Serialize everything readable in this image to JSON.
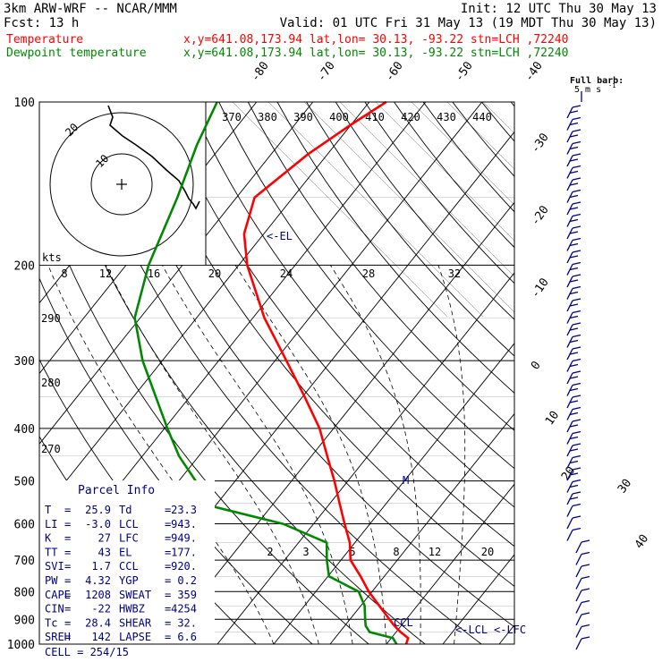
{
  "header": {
    "line1_left": "3km ARW-WRF -- NCAR/MMM",
    "line1_right": "Init: 12 UTC Thu 30 May 13",
    "line2_left": "Fcst:    13 h",
    "line2_right": "Valid: 01 UTC Fri 31 May 13 (19 MDT Thu 30 May 13)",
    "temp_label": "Temperature",
    "temp_info": "x,y=641.08,173.94   lat,lon= 30.13, -93.22  stn=LCH ,72240",
    "dew_label": "Dewpoint temperature",
    "dew_info": "x,y=641.08,173.94   lat,lon= 30.13, -93.22  stn=LCH ,72240"
  },
  "colors": {
    "temperature": "#ff0000",
    "dewpoint": "#008800",
    "annotation": "#000080",
    "wind": "#000080"
  },
  "chart_data": {
    "type": "line",
    "subtype": "skew-T log-P diagram",
    "y_axis": {
      "scale": "log",
      "range": [
        1000,
        100
      ],
      "ticks": [
        100,
        200,
        300,
        400,
        500,
        600,
        700,
        800,
        900,
        1000
      ]
    },
    "isotherm_labels": [
      "-80",
      "-70",
      "-60",
      "-50",
      "-40",
      "-30",
      "-20",
      "-10",
      "0",
      "10",
      "20",
      "30",
      "40"
    ],
    "isotherm_values": [
      -80,
      -70,
      -60,
      -50,
      -40,
      -30,
      -20,
      -10,
      0,
      10,
      20,
      30,
      40
    ],
    "theta_e_labels": [
      "370",
      "380",
      "390",
      "400",
      "410",
      "420",
      "430",
      "440"
    ],
    "mixing_ratio_upper_labels": [
      "8",
      "12",
      "16",
      "20",
      "24",
      "28",
      "32"
    ],
    "mixing_ratio_lower_labels": [
      "2",
      "3",
      "5",
      "8",
      "12",
      "20"
    ],
    "dry_adiabat_labels": [
      "290",
      "280",
      "270"
    ],
    "series": [
      {
        "name": "Temperature",
        "points": [
          [
            1000,
            23.5
          ],
          [
            975,
            23.0
          ],
          [
            950,
            20.8
          ],
          [
            925,
            18.8
          ],
          [
            900,
            17.0
          ],
          [
            850,
            13.3
          ],
          [
            800,
            9.4
          ],
          [
            750,
            5.8
          ],
          [
            700,
            1.7
          ],
          [
            650,
            -0.9
          ],
          [
            600,
            -4.5
          ],
          [
            550,
            -8.3
          ],
          [
            500,
            -12.4
          ],
          [
            450,
            -17.2
          ],
          [
            400,
            -22.5
          ],
          [
            350,
            -29.6
          ],
          [
            300,
            -38.0
          ],
          [
            250,
            -48.0
          ],
          [
            200,
            -58.5
          ],
          [
            175,
            -63.5
          ],
          [
            150,
            -66.8
          ],
          [
            125,
            -63.5
          ],
          [
            110,
            -60.0
          ],
          [
            100,
            -57.0
          ]
        ]
      },
      {
        "name": "Dewpoint temperature",
        "points": [
          [
            1000,
            21.8
          ],
          [
            975,
            20.3
          ],
          [
            950,
            15.3
          ],
          [
            925,
            13.7
          ],
          [
            900,
            12.7
          ],
          [
            850,
            10.7
          ],
          [
            800,
            7.6
          ],
          [
            750,
            0.2
          ],
          [
            700,
            -2.5
          ],
          [
            650,
            -5.0
          ],
          [
            600,
            -15.4
          ],
          [
            550,
            -33.0
          ],
          [
            500,
            -37.0
          ],
          [
            450,
            -43.5
          ],
          [
            400,
            -49.5
          ],
          [
            350,
            -56.0
          ],
          [
            300,
            -63.5
          ],
          [
            250,
            -71.0
          ],
          [
            200,
            -76.0
          ],
          [
            150,
            -80.5
          ],
          [
            120,
            -84.5
          ],
          [
            100,
            -87.0
          ]
        ]
      }
    ],
    "annotations": {
      "el": "<-EL",
      "lcl": "<-LCL",
      "lfc": "<-LFC",
      "ccl": "CCL",
      "m": "M"
    },
    "wind_label_line1": "Full barb:",
    "wind_label_line2": "5 m s",
    "wind_label_unit": "-1"
  },
  "hodograph": {
    "units_label": "kts",
    "ring_labels": [
      "20",
      "10"
    ]
  },
  "parcel_info": {
    "title": "Parcel Info",
    "rows": [
      {
        "k1": "T",
        "v1": "25.9",
        "k2": "Td",
        "v2": "23.3"
      },
      {
        "k1": "LI",
        "v1": "-3.0",
        "k2": "LCL",
        "v2": "943."
      },
      {
        "k1": "K",
        "v1": "27",
        "k2": "LFC",
        "v2": "949."
      },
      {
        "k1": "TT",
        "v1": "43",
        "k2": "EL",
        "v2": "177."
      },
      {
        "k1": "SVI",
        "v1": "1.7",
        "k2": "CCL",
        "v2": "920."
      },
      {
        "k1": "PW",
        "v1": "4.32",
        "k2": "YGP",
        "v2": "0.2"
      },
      {
        "k1": "CAPE",
        "v1": "1208",
        "k2": "SWEAT",
        "v2": "359"
      },
      {
        "k1": "CIN",
        "v1": "-22",
        "k2": "HWBZ",
        "v2": "4254"
      },
      {
        "k1": "Tc",
        "v1": "28.4",
        "k2": "SHEAR",
        "v2": "32."
      },
      {
        "k1": "SREH",
        "v1": "142",
        "k2": "LAPSE",
        "v2": "6.6"
      }
    ],
    "cell": "CELL = 254/15"
  }
}
